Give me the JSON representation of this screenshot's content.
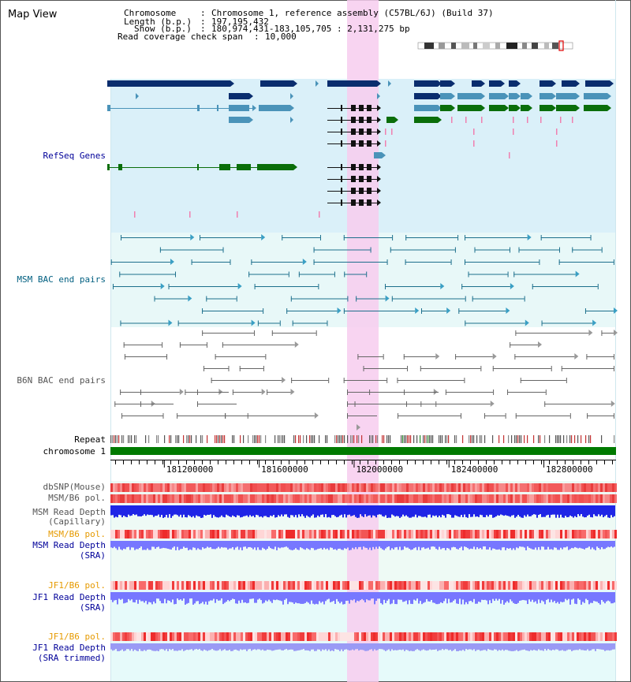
{
  "title": "Map View",
  "info": {
    "chromosome_key": "Chromosome",
    "chromosome_value": "Chromosome 1, reference assembly (C57BL/6J) (Build 37)",
    "length_key": "Length (b.p.)",
    "length_value": "197,195,432",
    "show_key": "Show (b.p.)",
    "show_value": "180,974,431-183,105,705 : 2,131,275 bp",
    "coverage_key": "Read coverage check span",
    "coverage_value": "10,000"
  },
  "tracks": {
    "refseq": "RefSeq Genes",
    "msm_bac": "MSM BAC end pairs",
    "b6n_bac": "B6N BAC end pairs",
    "repeat": "Repeat",
    "chromosome": "chromosome 1",
    "dbsnp": "dbSNP(Mouse)",
    "msm_pol": "MSM/B6 pol.",
    "msm_depth_cap_1": "MSM Read Depth",
    "msm_depth_cap_2": "(Capillary)",
    "msm_pol_sra": "MSM/B6 pol.",
    "msm_depth_sra_1": "MSM Read Depth",
    "msm_depth_sra_2": "(SRA)",
    "jf1_pol": "JF1/B6 pol.",
    "jf1_depth_sra_1": "JF1 Read Depth",
    "jf1_depth_sra_2": "(SRA)",
    "jf1_pol_trim": "JF1/B6 pol.",
    "jf1_depth_trim_1": "JF1 Read Depth",
    "jf1_depth_trim_2": "(SRA trimmed)"
  },
  "axis": {
    "ticks": [
      "181200000",
      "181600000",
      "182000000",
      "182400000",
      "182800000"
    ],
    "tick_values": [
      181200000,
      181600000,
      182000000,
      182400000,
      182800000
    ],
    "range": [
      180974431,
      183105705
    ]
  },
  "colors": {
    "refseq_bg": "#daf0f9",
    "bac_bg": "#e8f8f8",
    "b6n_bg": "#ffffff",
    "highlight": "#f7cdef",
    "chromosome": "#007a00",
    "gene_dark": "#0a2d6e",
    "gene_mid": "#4a93b9",
    "gene_green": "#0a6e0a",
    "msm_color": "#1d6f8c",
    "b6n_color": "#666666",
    "label_navy": "#00008b",
    "label_blue": "#000099",
    "label_teal": "#005f80",
    "label_gray": "#555555",
    "label_orange": "#e69a00",
    "read_depth": "#7777ff",
    "read_depth_cap": "#1f25e6",
    "pol_red": "#f03c3c"
  }
}
